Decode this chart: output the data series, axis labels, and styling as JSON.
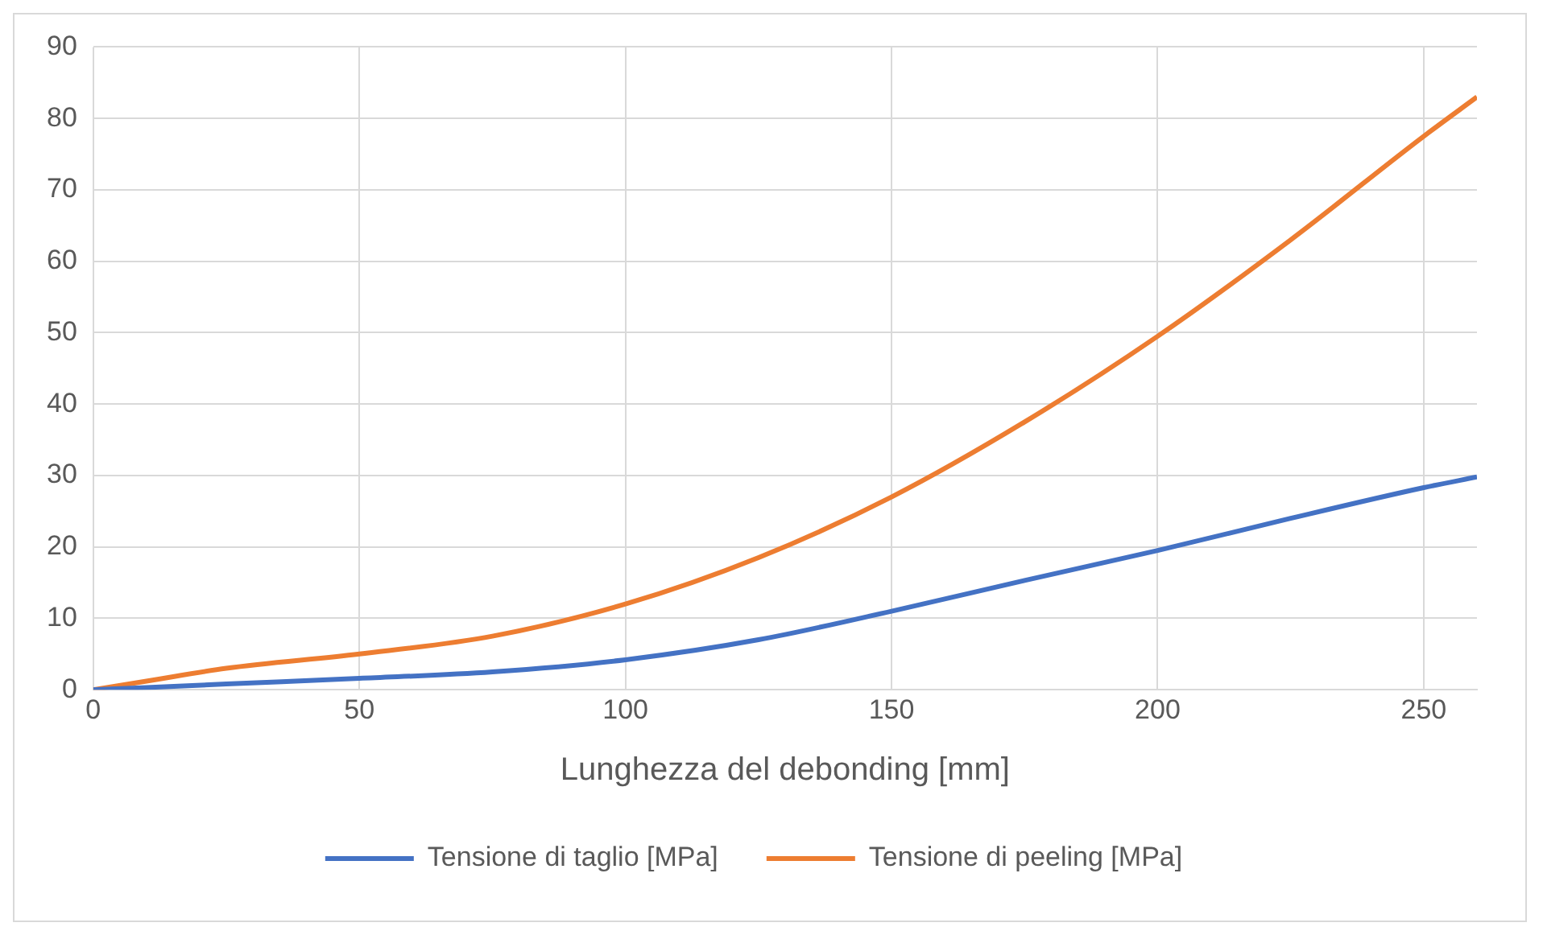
{
  "chart_data": {
    "type": "line",
    "xlabel": "Lunghezza del debonding [mm]",
    "x": [
      0,
      10,
      25,
      50,
      75,
      100,
      125,
      150,
      175,
      200,
      225,
      250,
      260
    ],
    "series": [
      {
        "name": "Tensione di taglio [MPa]",
        "color": "#4472c4",
        "values": [
          0,
          0.3,
          0.8,
          1.6,
          2.5,
          4.2,
          7,
          11,
          15.3,
          19.5,
          24,
          28.3,
          29.8
        ]
      },
      {
        "name": "Tensione di peeling [MPa]",
        "color": "#ed7d31",
        "values": [
          0,
          1.2,
          3,
          5,
          7.5,
          12,
          18.5,
          27,
          37.5,
          49.5,
          63,
          77.5,
          83
        ]
      }
    ],
    "xlim": [
      0,
      260
    ],
    "xticks": [
      0,
      50,
      100,
      150,
      200,
      250
    ],
    "ylim": [
      0,
      90
    ],
    "yticks": [
      0,
      10,
      20,
      30,
      40,
      50,
      60,
      70,
      80,
      90
    ],
    "grid": true,
    "legend": "bottom",
    "marker": "none",
    "line_style": "solid"
  }
}
